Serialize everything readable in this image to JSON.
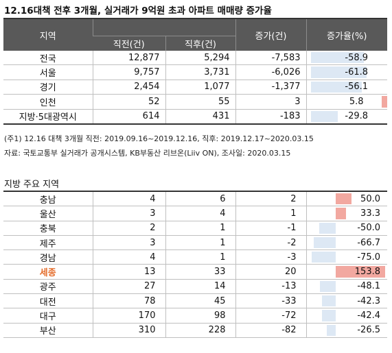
{
  "title": "12.16대책 전후 3개월, 실거래가 9억원 초과 아파트 매매량 증가율",
  "table1": {
    "headers": {
      "region": "지역",
      "before": "직전(건)",
      "after": "직후(건)",
      "increase": "증가(건)",
      "rate": "증가율(%)"
    },
    "rows": [
      {
        "region": "전국",
        "before": "12,877",
        "after": "5,294",
        "increase": "-7,583",
        "rate": "-58.9",
        "rate_value": -58.9
      },
      {
        "region": "서울",
        "before": "9,757",
        "after": "3,731",
        "increase": "-6,026",
        "rate": "-61.8",
        "rate_value": -61.8
      },
      {
        "region": "경기",
        "before": "2,454",
        "after": "1,077",
        "increase": "-1,377",
        "rate": "-56.1",
        "rate_value": -56.1
      },
      {
        "region": "인천",
        "before": "52",
        "after": "55",
        "increase": "3",
        "rate": "5.8",
        "rate_value": 5.8
      },
      {
        "region": "지방·5대광역시",
        "before": "614",
        "after": "431",
        "increase": "-183",
        "rate": "-29.8",
        "rate_value": -29.8
      }
    ]
  },
  "notes": {
    "note1": "(주1) 12.16 대책 3개월 직전: 2019.09.16~2019.12.16, 직후: 2019.12.17~2020.03.15",
    "source": "자료: 국토교통부 실거래가 공개시스템, KB부동산 리브온(Liiv ON), 조사일: 2020.03.15"
  },
  "table2": {
    "title": "지방 주요 지역",
    "rows": [
      {
        "region": "충남",
        "before": "4",
        "after": "6",
        "increase": "2",
        "rate": "50.0",
        "rate_value": 50.0,
        "highlight": false
      },
      {
        "region": "울산",
        "before": "3",
        "after": "4",
        "increase": "1",
        "rate": "33.3",
        "rate_value": 33.3,
        "highlight": false
      },
      {
        "region": "충북",
        "before": "2",
        "after": "1",
        "increase": "-1",
        "rate": "-50.0",
        "rate_value": -50.0,
        "highlight": false
      },
      {
        "region": "제주",
        "before": "3",
        "after": "1",
        "increase": "-2",
        "rate": "-66.7",
        "rate_value": -66.7,
        "highlight": false
      },
      {
        "region": "경남",
        "before": "4",
        "after": "1",
        "increase": "-3",
        "rate": "-75.0",
        "rate_value": -75.0,
        "highlight": false
      },
      {
        "region": "세종",
        "before": "13",
        "after": "33",
        "increase": "20",
        "rate": "153.8",
        "rate_value": 153.8,
        "highlight": true
      },
      {
        "region": "광주",
        "before": "27",
        "after": "14",
        "increase": "-13",
        "rate": "-48.1",
        "rate_value": -48.1,
        "highlight": false
      },
      {
        "region": "대전",
        "before": "78",
        "after": "45",
        "increase": "-33",
        "rate": "-42.3",
        "rate_value": -42.3,
        "highlight": false
      },
      {
        "region": "대구",
        "before": "170",
        "after": "98",
        "increase": "-72",
        "rate": "-42.4",
        "rate_value": -42.4,
        "highlight": false
      },
      {
        "region": "부산",
        "before": "310",
        "after": "228",
        "increase": "-82",
        "rate": "-26.5",
        "rate_value": -26.5,
        "highlight": false
      }
    ]
  },
  "colors": {
    "header_bg": "#595959",
    "negative_bar": "#dde8f4",
    "positive_bar": "#f2a8a0",
    "highlight_text": "#e46c2a"
  }
}
